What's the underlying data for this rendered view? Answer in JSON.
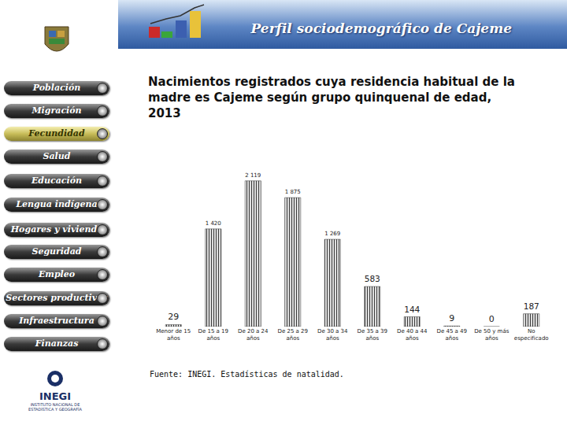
{
  "header": {
    "title": "Perfil sociodemográfico de Cajeme"
  },
  "nav": {
    "items": [
      "Población",
      "Migración",
      "Fecundidad",
      "Salud",
      "Educación",
      "Lengua indígena",
      "Hogares y vivienda",
      "Seguridad",
      "Empleo",
      "Sectores productivos",
      "Infraestructura",
      "Finanzas"
    ],
    "active": "Fecundidad"
  },
  "logo": {
    "name": "INEGI",
    "subtitle": "INSTITUTO NACIONAL DE ESTADÍSTICA Y GEOGRAFÍA"
  },
  "source": "Fuente: INEGI. Estadísticas de natalidad.",
  "chart_data": {
    "type": "bar",
    "title": "Nacimientos registrados cuya residencia habitual de la madre es Cajeme según grupo quinquenal de edad, 2013",
    "categories": [
      "Menor de 15 años",
      "De 15 a 19 años",
      "De 20 a 24 años",
      "De 25 a 29 años",
      "De 30 a 34 años",
      "De 35 a 39 años",
      "De 40 a 44 años",
      "De 45 a 49 años",
      "De 50 y más años",
      "No especificado"
    ],
    "values": [
      29,
      1420,
      2119,
      1875,
      1269,
      583,
      144,
      9,
      0,
      187
    ],
    "value_labels": [
      "29",
      "1 420",
      "2 119",
      "1 875",
      "1 269",
      "583",
      "144",
      "9",
      "0",
      "187"
    ],
    "color": "#3c3c3c",
    "data_labels": true,
    "tick_labels": "x",
    "grid": false
  }
}
